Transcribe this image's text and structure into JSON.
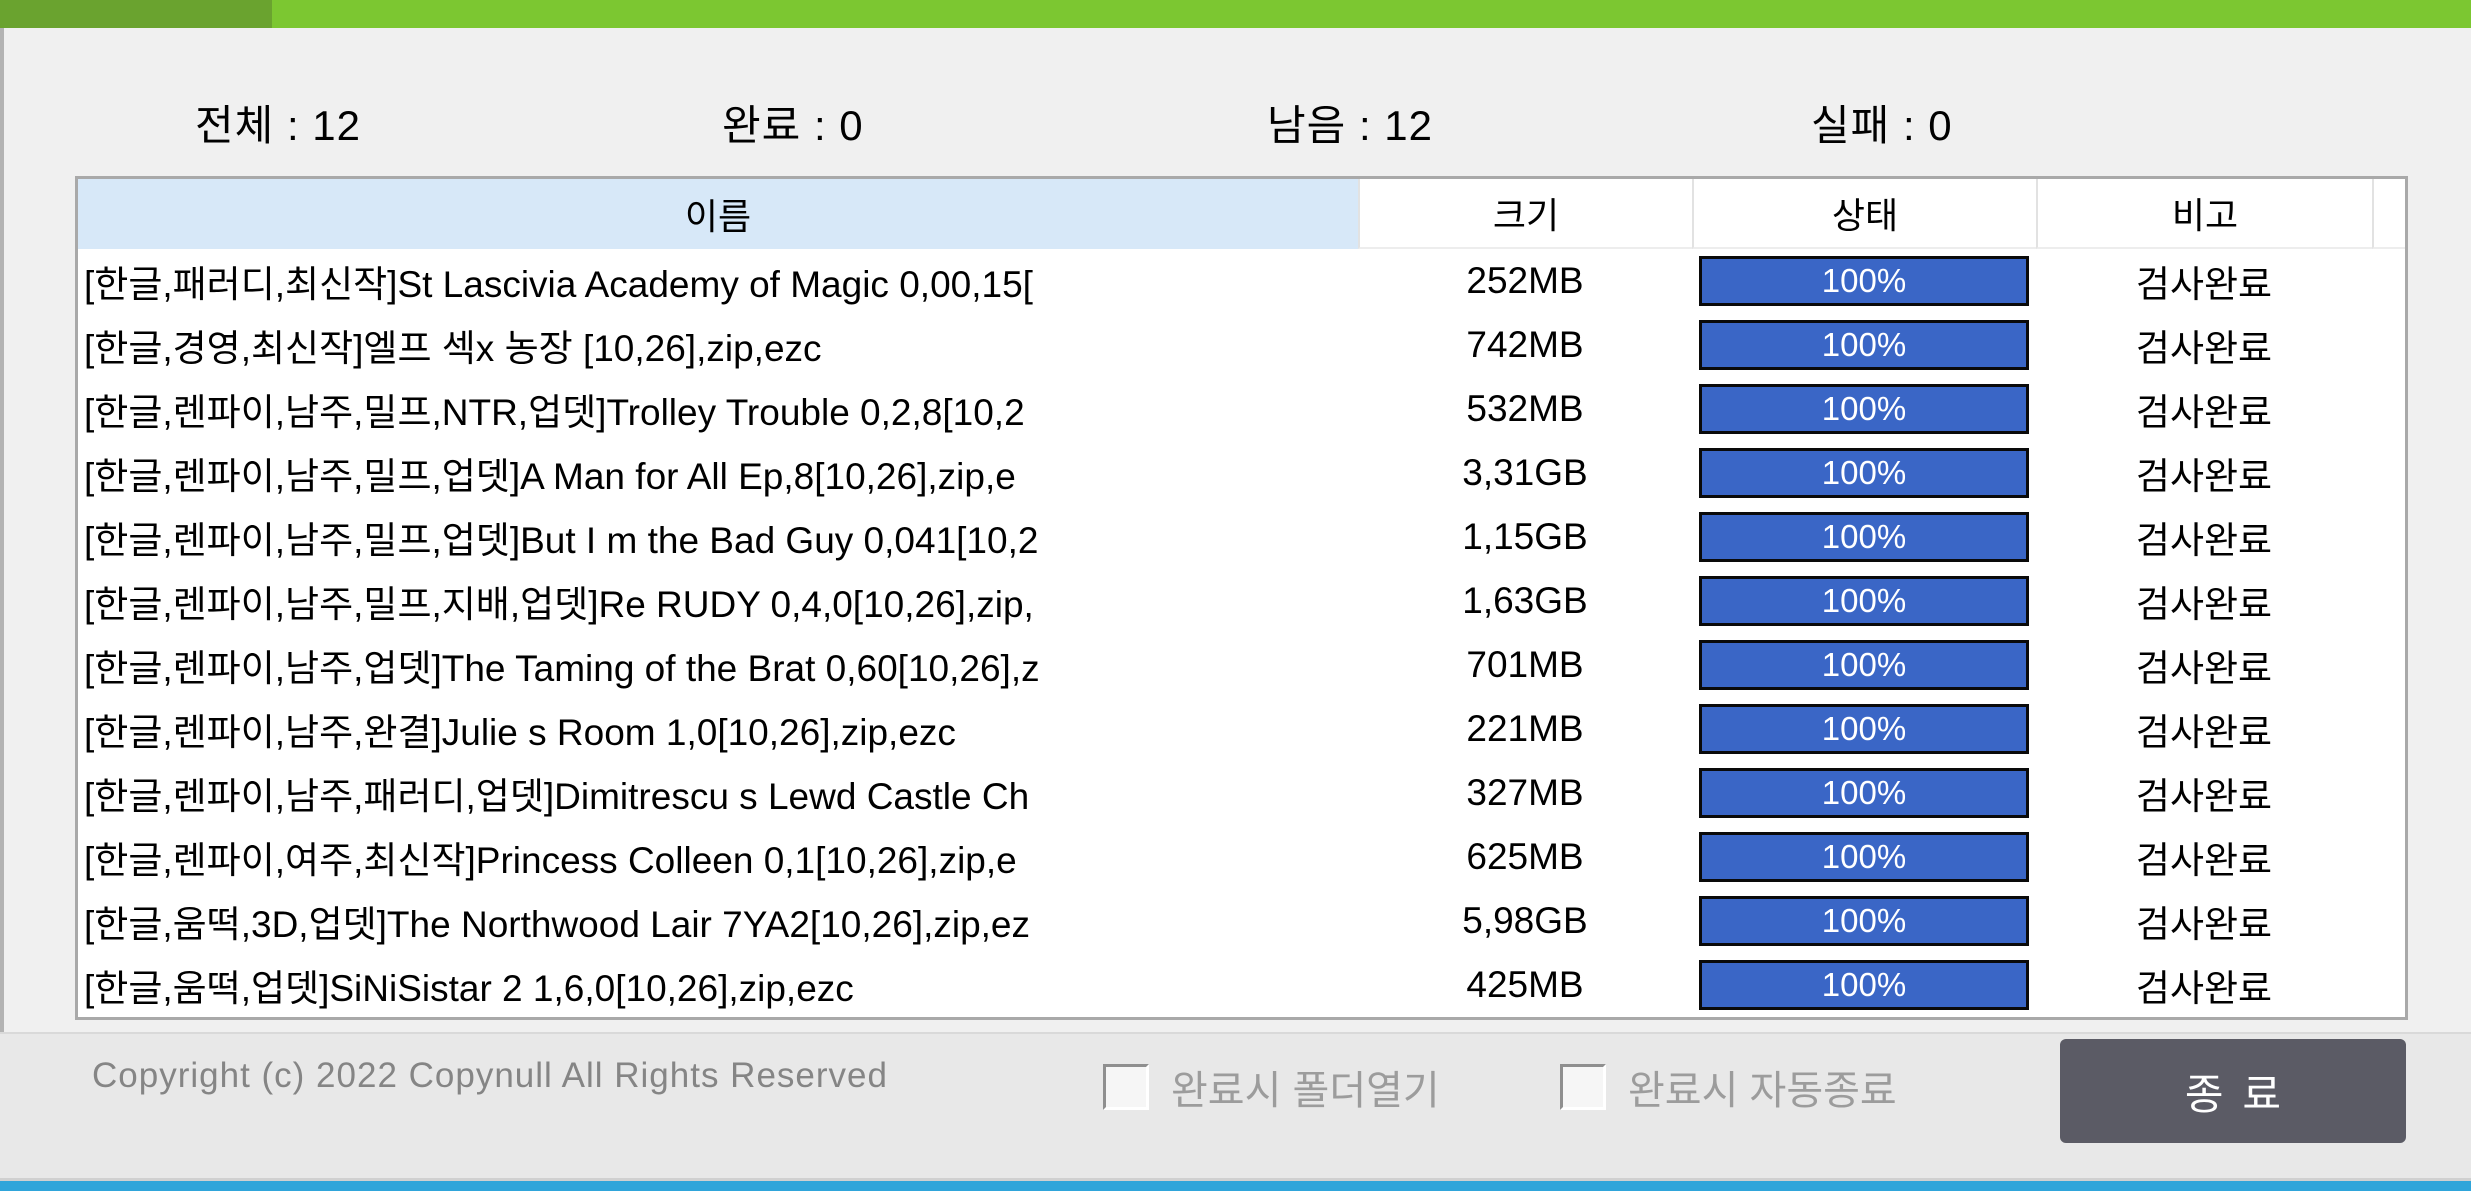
{
  "colors": {
    "titlebar_dark": "#6aa32f",
    "titlebar_light": "#7cc731",
    "header_name_bg": "#d7e8f8",
    "progress_fill": "#3a66c6",
    "bottom_strip": "#2fa5da",
    "button_bg": "#5b5b65"
  },
  "stats": [
    {
      "label": "전체",
      "value": "12",
      "text": "전체 : 12"
    },
    {
      "label": "완료",
      "value": "0",
      "text": "완료 : 0"
    },
    {
      "label": "남음",
      "value": "12",
      "text": "남음 : 12"
    },
    {
      "label": "실패",
      "value": "0",
      "text": "실패 : 0"
    }
  ],
  "table": {
    "columns": [
      {
        "label": "이름"
      },
      {
        "label": "크기"
      },
      {
        "label": "상태"
      },
      {
        "label": "비고"
      }
    ],
    "rows": [
      {
        "name": "[한글,패러디,최신작]St Lascivia Academy of Magic 0,00,15[",
        "size": "252MB",
        "progress_percent": 100,
        "progress_label": "100%",
        "note": "검사완료"
      },
      {
        "name": "[한글,경영,최신작]엘프 섹x 농장 [10,26],zip,ezc",
        "size": "742MB",
        "progress_percent": 100,
        "progress_label": "100%",
        "note": "검사완료"
      },
      {
        "name": "[한글,렌파이,남주,밀프,NTR,업뎃]Trolley Trouble 0,2,8[10,2",
        "size": "532MB",
        "progress_percent": 100,
        "progress_label": "100%",
        "note": "검사완료"
      },
      {
        "name": "[한글,렌파이,남주,밀프,업뎃]A Man for All Ep,8[10,26],zip,e",
        "size": "3,31GB",
        "progress_percent": 100,
        "progress_label": "100%",
        "note": "검사완료"
      },
      {
        "name": "[한글,렌파이,남주,밀프,업뎃]But I m the Bad Guy 0,041[10,2",
        "size": "1,15GB",
        "progress_percent": 100,
        "progress_label": "100%",
        "note": "검사완료"
      },
      {
        "name": "[한글,렌파이,남주,밀프,지배,업뎃]Re RUDY 0,4,0[10,26],zip,",
        "size": "1,63GB",
        "progress_percent": 100,
        "progress_label": "100%",
        "note": "검사완료"
      },
      {
        "name": "[한글,렌파이,남주,업뎃]The Taming of the Brat 0,60[10,26],z",
        "size": "701MB",
        "progress_percent": 100,
        "progress_label": "100%",
        "note": "검사완료"
      },
      {
        "name": "[한글,렌파이,남주,완결]Julie s Room 1,0[10,26],zip,ezc",
        "size": "221MB",
        "progress_percent": 100,
        "progress_label": "100%",
        "note": "검사완료"
      },
      {
        "name": "[한글,렌파이,남주,패러디,업뎃]Dimitrescu s Lewd Castle Ch",
        "size": "327MB",
        "progress_percent": 100,
        "progress_label": "100%",
        "note": "검사완료"
      },
      {
        "name": "[한글,렌파이,여주,최신작]Princess Colleen 0,1[10,26],zip,e",
        "size": "625MB",
        "progress_percent": 100,
        "progress_label": "100%",
        "note": "검사완료"
      },
      {
        "name": "[한글,움떡,3D,업뎃]The Northwood Lair 7YA2[10,26],zip,ez",
        "size": "5,98GB",
        "progress_percent": 100,
        "progress_label": "100%",
        "note": "검사완료"
      },
      {
        "name": "[한글,움떡,업뎃]SiNiSistar 2 1,6,0[10,26],zip,ezc",
        "size": "425MB",
        "progress_percent": 100,
        "progress_label": "100%",
        "note": "검사완료"
      }
    ]
  },
  "footer": {
    "copyright": "Copyright (c) 2022 Copynull All Rights Reserved",
    "checkboxes": [
      {
        "label": "완료시 폴더열기",
        "checked": false
      },
      {
        "label": "완료시 자동종료",
        "checked": false
      }
    ],
    "close_button_label": "종료"
  }
}
